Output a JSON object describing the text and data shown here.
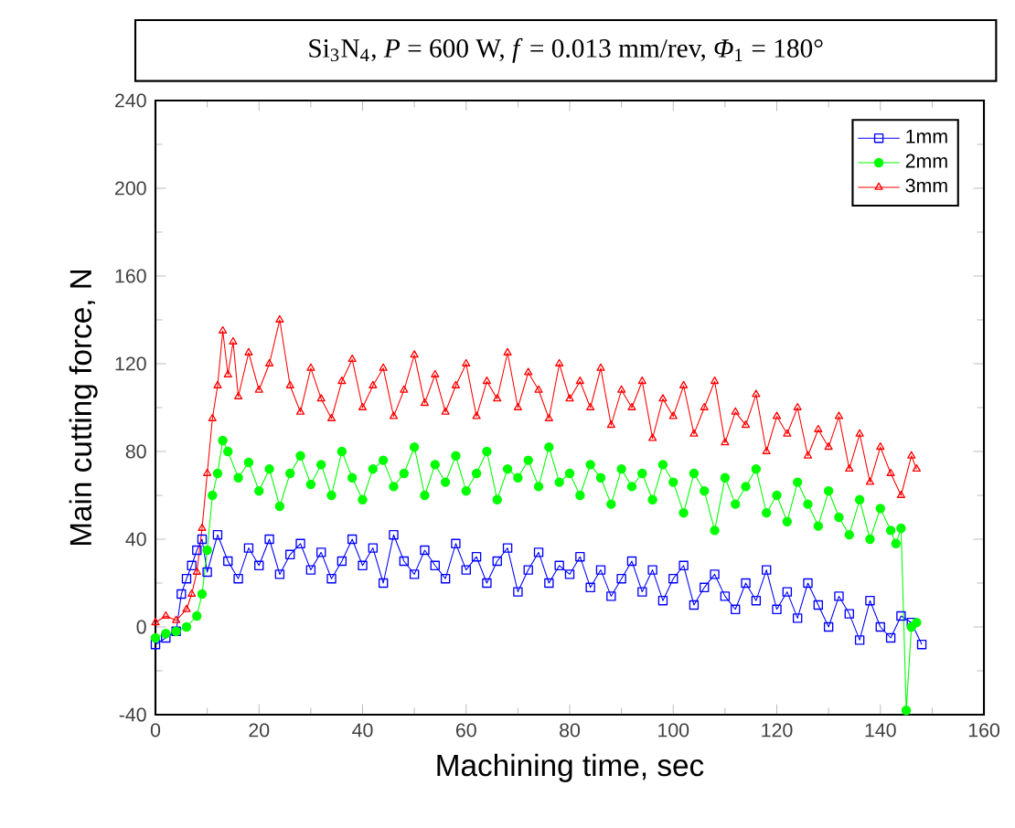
{
  "chart_data": {
    "type": "line",
    "title": "Si$_{3}$N$_{4}$, *P* = 600 W, *f* = 0.013 mm/rev, *Φ*$_{1}$ = 180°",
    "xlabel": "Machining time, sec",
    "ylabel": "Main cutting force, N",
    "xlim": [
      0,
      160
    ],
    "ylim": [
      -40,
      240
    ],
    "xticks": [
      0,
      20,
      40,
      60,
      80,
      100,
      120,
      140,
      160
    ],
    "yticks": [
      -40,
      0,
      40,
      80,
      120,
      160,
      200,
      240
    ],
    "grid": false,
    "legend": "top right",
    "series": [
      {
        "name": "1mm",
        "color": "#0000ff",
        "marker": "square",
        "x": [
          0,
          2,
          4,
          5,
          6,
          7,
          8,
          9,
          10,
          12,
          14,
          16,
          18,
          20,
          22,
          24,
          26,
          28,
          30,
          32,
          34,
          36,
          38,
          40,
          42,
          44,
          46,
          48,
          50,
          52,
          54,
          56,
          58,
          60,
          62,
          64,
          66,
          68,
          70,
          72,
          74,
          76,
          78,
          80,
          82,
          84,
          86,
          88,
          90,
          92,
          94,
          96,
          98,
          100,
          102,
          104,
          106,
          108,
          110,
          112,
          114,
          116,
          118,
          120,
          122,
          124,
          126,
          128,
          130,
          132,
          134,
          136,
          138,
          140,
          142,
          144,
          146,
          148
        ],
        "values": [
          -8,
          -5,
          -2,
          15,
          22,
          28,
          35,
          40,
          25,
          42,
          30,
          22,
          36,
          28,
          40,
          24,
          33,
          38,
          26,
          34,
          22,
          30,
          40,
          28,
          36,
          20,
          42,
          30,
          24,
          35,
          28,
          22,
          38,
          26,
          32,
          20,
          30,
          36,
          16,
          26,
          34,
          20,
          28,
          24,
          32,
          18,
          26,
          14,
          22,
          30,
          16,
          26,
          12,
          22,
          28,
          10,
          18,
          24,
          14,
          8,
          20,
          12,
          26,
          8,
          16,
          4,
          20,
          10,
          0,
          14,
          6,
          -6,
          12,
          0,
          -5,
          5,
          2,
          -8
        ]
      },
      {
        "name": "2mm",
        "color": "#00ff00",
        "marker": "circle",
        "x": [
          0,
          2,
          4,
          6,
          8,
          9,
          10,
          11,
          12,
          13,
          14,
          16,
          18,
          20,
          22,
          24,
          26,
          28,
          30,
          32,
          34,
          36,
          38,
          40,
          42,
          44,
          46,
          48,
          50,
          52,
          54,
          56,
          58,
          60,
          62,
          64,
          66,
          68,
          70,
          72,
          74,
          76,
          78,
          80,
          82,
          84,
          86,
          88,
          90,
          92,
          94,
          96,
          98,
          100,
          102,
          104,
          106,
          108,
          110,
          112,
          114,
          116,
          118,
          120,
          122,
          124,
          126,
          128,
          130,
          132,
          134,
          136,
          138,
          140,
          142,
          143,
          144,
          145,
          146,
          147
        ],
        "values": [
          -5,
          -3,
          -2,
          0,
          5,
          15,
          35,
          60,
          70,
          85,
          80,
          68,
          75,
          62,
          72,
          55,
          70,
          78,
          65,
          74,
          60,
          80,
          68,
          58,
          72,
          76,
          64,
          70,
          82,
          60,
          74,
          66,
          78,
          62,
          70,
          80,
          58,
          72,
          68,
          76,
          64,
          82,
          66,
          70,
          60,
          74,
          68,
          56,
          72,
          64,
          70,
          58,
          74,
          66,
          52,
          70,
          62,
          44,
          68,
          56,
          64,
          72,
          52,
          60,
          48,
          66,
          56,
          46,
          62,
          50,
          42,
          58,
          40,
          54,
          44,
          38,
          45,
          -38,
          0,
          2
        ]
      },
      {
        "name": "3mm",
        "color": "#ff0000",
        "marker": "triangle",
        "x": [
          0,
          2,
          4,
          6,
          7,
          8,
          9,
          10,
          11,
          12,
          13,
          14,
          15,
          16,
          18,
          20,
          22,
          24,
          26,
          28,
          30,
          32,
          34,
          36,
          38,
          40,
          42,
          44,
          46,
          48,
          50,
          52,
          54,
          56,
          58,
          60,
          62,
          64,
          66,
          68,
          70,
          72,
          74,
          76,
          78,
          80,
          82,
          84,
          86,
          88,
          90,
          92,
          94,
          96,
          98,
          100,
          102,
          104,
          106,
          108,
          110,
          112,
          114,
          116,
          118,
          120,
          122,
          124,
          126,
          128,
          130,
          132,
          134,
          136,
          138,
          140,
          142,
          144,
          146,
          147
        ],
        "values": [
          2,
          5,
          3,
          8,
          15,
          25,
          45,
          70,
          95,
          110,
          135,
          115,
          130,
          105,
          125,
          108,
          120,
          140,
          110,
          98,
          118,
          104,
          95,
          112,
          122,
          100,
          110,
          118,
          96,
          108,
          124,
          102,
          115,
          98,
          110,
          120,
          96,
          112,
          104,
          125,
          100,
          116,
          108,
          95,
          120,
          104,
          112,
          100,
          118,
          92,
          108,
          100,
          112,
          86,
          104,
          96,
          110,
          88,
          100,
          112,
          84,
          98,
          92,
          106,
          80,
          96,
          88,
          100,
          78,
          90,
          82,
          96,
          72,
          88,
          66,
          82,
          70,
          60,
          78,
          72
        ]
      }
    ]
  }
}
